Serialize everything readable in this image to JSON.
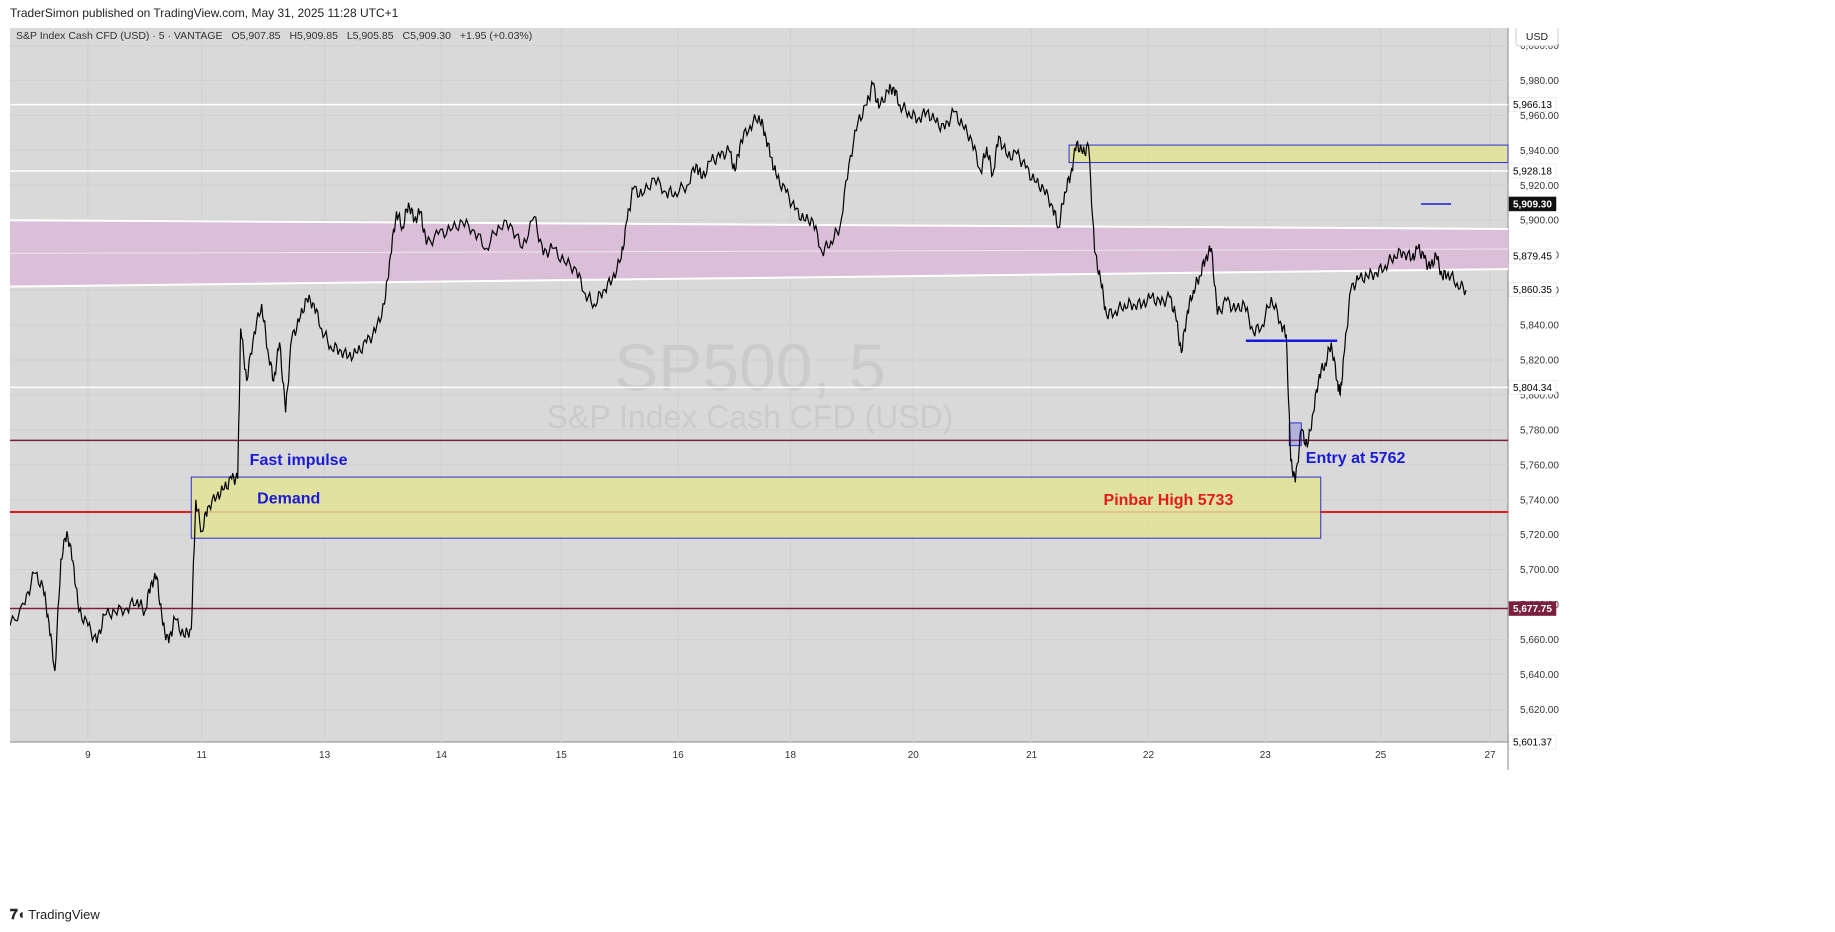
{
  "header": {
    "publish_line": "TraderSimon published on TradingView.com, May 31, 2025 11:28 UTC+1"
  },
  "legend": {
    "symbol": "S&P Index Cash CFD (USD) · 5 · VANTAGE",
    "open": "O5,907.85",
    "high": "H5,909.85",
    "low": "L5,905.85",
    "close": "C5,909.30",
    "change": "+1.95 (+0.03%)"
  },
  "watermark": {
    "line1": "SP500, 5",
    "line2": "S&P Index Cash CFD (USD)"
  },
  "currency_button": "USD",
  "footer": {
    "brand": "TradingView",
    "logo": "tradingview-logo-icon"
  },
  "colors": {
    "background": "#d9d9d9",
    "price_line": "#000000",
    "zone_fill": "#e2e295",
    "zone_border": "#2d2dd6",
    "band_fill": "#dbbfd9",
    "red_line": "#e21a1a",
    "maroon_line": "#7a1f3c",
    "annotation_blue": "#1a1ad6",
    "annotation_red": "#e21a1a"
  },
  "chart_data": {
    "type": "line",
    "timeframe": "5",
    "y_axis_ticks": [
      "6,000.00",
      "5,980.00",
      "5,960.00",
      "5,940.00",
      "5,920.00",
      "5,900.00",
      "5,880.00",
      "5,860.00",
      "5,840.00",
      "5,820.00",
      "5,800.00",
      "5,780.00",
      "5,760.00",
      "5,740.00",
      "5,720.00",
      "5,700.00",
      "5,680.00",
      "5,660.00",
      "5,640.00",
      "5,620.00"
    ],
    "x_axis_ticks": [
      {
        "label": "9",
        "t": 0.052
      },
      {
        "label": "11",
        "t": 0.128
      },
      {
        "label": "13",
        "t": 0.21
      },
      {
        "label": "14",
        "t": 0.288
      },
      {
        "label": "15",
        "t": 0.368
      },
      {
        "label": "16",
        "t": 0.446
      },
      {
        "label": "18",
        "t": 0.521
      },
      {
        "label": "20",
        "t": 0.603
      },
      {
        "label": "21",
        "t": 0.682
      },
      {
        "label": "22",
        "t": 0.76
      },
      {
        "label": "23",
        "t": 0.838
      },
      {
        "label": "25",
        "t": 0.915
      },
      {
        "label": "27",
        "t": 0.988
      }
    ],
    "ylim": [
      5601.37,
      6010
    ],
    "price_labels": [
      {
        "value": 5966.13,
        "text": "5,966.13",
        "style": "white"
      },
      {
        "value": 5928.18,
        "text": "5,928.18",
        "style": "white"
      },
      {
        "value": 5909.3,
        "text": "5,909.30",
        "style": "black"
      },
      {
        "value": 5879.45,
        "text": "5,879.45",
        "style": "white"
      },
      {
        "value": 5860.35,
        "text": "5,860.35",
        "style": "white"
      },
      {
        "value": 5804.34,
        "text": "5,804.34",
        "style": "white"
      },
      {
        "value": 5677.75,
        "text": "5,677.75",
        "style": "maroon"
      },
      {
        "value": 5601.37,
        "text": "5,601.37",
        "style": "white"
      }
    ],
    "horizontal_lines": [
      {
        "value": 5966.13,
        "color": "white"
      },
      {
        "value": 5928.18,
        "color": "white"
      },
      {
        "value": 5804.34,
        "color": "white"
      },
      {
        "value": 5774,
        "color": "maroon"
      },
      {
        "value": 5733,
        "color": "red"
      },
      {
        "value": 5677.75,
        "color": "maroon"
      }
    ],
    "zones": [
      {
        "name": "Demand",
        "t0": 0.121,
        "t1": 0.875,
        "y0": 5718,
        "y1": 5753
      },
      {
        "name": "top-zone",
        "t0": 0.707,
        "t1": 1.0,
        "y0": 5933,
        "y1": 5943
      },
      {
        "name": "entry-box",
        "t0": 0.854,
        "t1": 0.862,
        "y0": 5771,
        "y1": 5784
      }
    ],
    "band": {
      "t0": 0,
      "t1": 1.0,
      "top_start": 5900,
      "top_end": 5895,
      "bottom_start": 5862,
      "bottom_end": 5872
    },
    "segments": [
      {
        "name": "blue-level",
        "t0": 0.825,
        "t1": 0.886,
        "y": 5831
      },
      {
        "name": "last-price-tick",
        "t0": 0.942,
        "t1": 0.962,
        "y": 5909.3
      }
    ],
    "annotations": [
      {
        "text": "Fast impulse",
        "t": 0.16,
        "y": 5760,
        "color": "blue"
      },
      {
        "text": "Demand",
        "t": 0.165,
        "y": 5738,
        "color": "blue"
      },
      {
        "text": "Pinbar High 5733",
        "t": 0.73,
        "y": 5737,
        "color": "red"
      },
      {
        "text": "Entry at 5762",
        "t": 0.865,
        "y": 5761,
        "color": "blue"
      }
    ],
    "price_path": [
      [
        0.0,
        5668
      ],
      [
        0.01,
        5680
      ],
      [
        0.016,
        5698
      ],
      [
        0.022,
        5690
      ],
      [
        0.026,
        5670
      ],
      [
        0.03,
        5642
      ],
      [
        0.034,
        5706
      ],
      [
        0.038,
        5722
      ],
      [
        0.042,
        5705
      ],
      [
        0.046,
        5676
      ],
      [
        0.052,
        5668
      ],
      [
        0.058,
        5658
      ],
      [
        0.063,
        5674
      ],
      [
        0.07,
        5676
      ],
      [
        0.078,
        5678
      ],
      [
        0.085,
        5683
      ],
      [
        0.09,
        5676
      ],
      [
        0.094,
        5692
      ],
      [
        0.098,
        5696
      ],
      [
        0.102,
        5668
      ],
      [
        0.106,
        5658
      ],
      [
        0.11,
        5672
      ],
      [
        0.116,
        5662
      ],
      [
        0.121,
        5666
      ],
      [
        0.124,
        5740
      ],
      [
        0.128,
        5722
      ],
      [
        0.132,
        5736
      ],
      [
        0.138,
        5742
      ],
      [
        0.143,
        5746
      ],
      [
        0.148,
        5752
      ],
      [
        0.152,
        5752
      ],
      [
        0.154,
        5838
      ],
      [
        0.158,
        5808
      ],
      [
        0.163,
        5836
      ],
      [
        0.168,
        5852
      ],
      [
        0.172,
        5826
      ],
      [
        0.176,
        5808
      ],
      [
        0.18,
        5830
      ],
      [
        0.184,
        5790
      ],
      [
        0.188,
        5832
      ],
      [
        0.193,
        5842
      ],
      [
        0.198,
        5855
      ],
      [
        0.203,
        5852
      ],
      [
        0.208,
        5838
      ],
      [
        0.214,
        5828
      ],
      [
        0.22,
        5826
      ],
      [
        0.226,
        5822
      ],
      [
        0.232,
        5824
      ],
      [
        0.238,
        5830
      ],
      [
        0.244,
        5836
      ],
      [
        0.25,
        5852
      ],
      [
        0.254,
        5880
      ],
      [
        0.258,
        5905
      ],
      [
        0.262,
        5896
      ],
      [
        0.266,
        5910
      ],
      [
        0.27,
        5900
      ],
      [
        0.274,
        5905
      ],
      [
        0.278,
        5886
      ],
      [
        0.286,
        5892
      ],
      [
        0.294,
        5894
      ],
      [
        0.302,
        5899
      ],
      [
        0.31,
        5894
      ],
      [
        0.318,
        5884
      ],
      [
        0.326,
        5897
      ],
      [
        0.334,
        5898
      ],
      [
        0.342,
        5884
      ],
      [
        0.35,
        5902
      ],
      [
        0.356,
        5880
      ],
      [
        0.362,
        5884
      ],
      [
        0.37,
        5876
      ],
      [
        0.378,
        5872
      ],
      [
        0.384,
        5858
      ],
      [
        0.39,
        5852
      ],
      [
        0.396,
        5860
      ],
      [
        0.402,
        5866
      ],
      [
        0.408,
        5878
      ],
      [
        0.412,
        5900
      ],
      [
        0.416,
        5918
      ],
      [
        0.422,
        5914
      ],
      [
        0.43,
        5924
      ],
      [
        0.438,
        5916
      ],
      [
        0.444,
        5916
      ],
      [
        0.452,
        5920
      ],
      [
        0.458,
        5932
      ],
      [
        0.462,
        5924
      ],
      [
        0.468,
        5934
      ],
      [
        0.474,
        5936
      ],
      [
        0.48,
        5940
      ],
      [
        0.484,
        5928
      ],
      [
        0.488,
        5946
      ],
      [
        0.494,
        5954
      ],
      [
        0.5,
        5960
      ],
      [
        0.504,
        5950
      ],
      [
        0.508,
        5936
      ],
      [
        0.512,
        5924
      ],
      [
        0.518,
        5916
      ],
      [
        0.524,
        5906
      ],
      [
        0.53,
        5900
      ],
      [
        0.536,
        5900
      ],
      [
        0.542,
        5882
      ],
      [
        0.548,
        5888
      ],
      [
        0.554,
        5896
      ],
      [
        0.56,
        5932
      ],
      [
        0.566,
        5956
      ],
      [
        0.572,
        5966
      ],
      [
        0.576,
        5978
      ],
      [
        0.58,
        5964
      ],
      [
        0.586,
        5974
      ],
      [
        0.59,
        5976
      ],
      [
        0.594,
        5966
      ],
      [
        0.6,
        5962
      ],
      [
        0.606,
        5958
      ],
      [
        0.612,
        5962
      ],
      [
        0.618,
        5956
      ],
      [
        0.624,
        5952
      ],
      [
        0.63,
        5962
      ],
      [
        0.636,
        5954
      ],
      [
        0.642,
        5946
      ],
      [
        0.648,
        5928
      ],
      [
        0.652,
        5942
      ],
      [
        0.656,
        5926
      ],
      [
        0.66,
        5948
      ],
      [
        0.666,
        5936
      ],
      [
        0.672,
        5938
      ],
      [
        0.678,
        5930
      ],
      [
        0.684,
        5922
      ],
      [
        0.69,
        5918
      ],
      [
        0.696,
        5908
      ],
      [
        0.7,
        5896
      ],
      [
        0.704,
        5916
      ],
      [
        0.708,
        5926
      ],
      [
        0.712,
        5944
      ],
      [
        0.716,
        5938
      ],
      [
        0.72,
        5942
      ],
      [
        0.724,
        5882
      ],
      [
        0.728,
        5866
      ],
      [
        0.732,
        5846
      ],
      [
        0.738,
        5848
      ],
      [
        0.744,
        5852
      ],
      [
        0.75,
        5852
      ],
      [
        0.756,
        5852
      ],
      [
        0.762,
        5856
      ],
      [
        0.768,
        5852
      ],
      [
        0.774,
        5856
      ],
      [
        0.778,
        5846
      ],
      [
        0.782,
        5824
      ],
      [
        0.786,
        5848
      ],
      [
        0.79,
        5860
      ],
      [
        0.794,
        5868
      ],
      [
        0.798,
        5878
      ],
      [
        0.802,
        5884
      ],
      [
        0.806,
        5846
      ],
      [
        0.812,
        5854
      ],
      [
        0.818,
        5848
      ],
      [
        0.824,
        5852
      ],
      [
        0.83,
        5836
      ],
      [
        0.836,
        5840
      ],
      [
        0.842,
        5856
      ],
      [
        0.848,
        5842
      ],
      [
        0.852,
        5834
      ],
      [
        0.855,
        5762
      ],
      [
        0.858,
        5750
      ],
      [
        0.862,
        5780
      ],
      [
        0.866,
        5770
      ],
      [
        0.87,
        5790
      ],
      [
        0.874,
        5812
      ],
      [
        0.878,
        5818
      ],
      [
        0.882,
        5830
      ],
      [
        0.886,
        5808
      ],
      [
        0.888,
        5800
      ],
      [
        0.891,
        5826
      ],
      [
        0.895,
        5860
      ],
      [
        0.9,
        5866
      ],
      [
        0.906,
        5868
      ],
      [
        0.912,
        5870
      ],
      [
        0.918,
        5874
      ],
      [
        0.924,
        5880
      ],
      [
        0.93,
        5882
      ],
      [
        0.936,
        5878
      ],
      [
        0.94,
        5884
      ],
      [
        0.944,
        5878
      ],
      [
        0.948,
        5872
      ],
      [
        0.952,
        5880
      ],
      [
        0.956,
        5868
      ],
      [
        0.96,
        5870
      ],
      [
        0.966,
        5864
      ],
      [
        0.972,
        5860
      ]
    ]
  }
}
